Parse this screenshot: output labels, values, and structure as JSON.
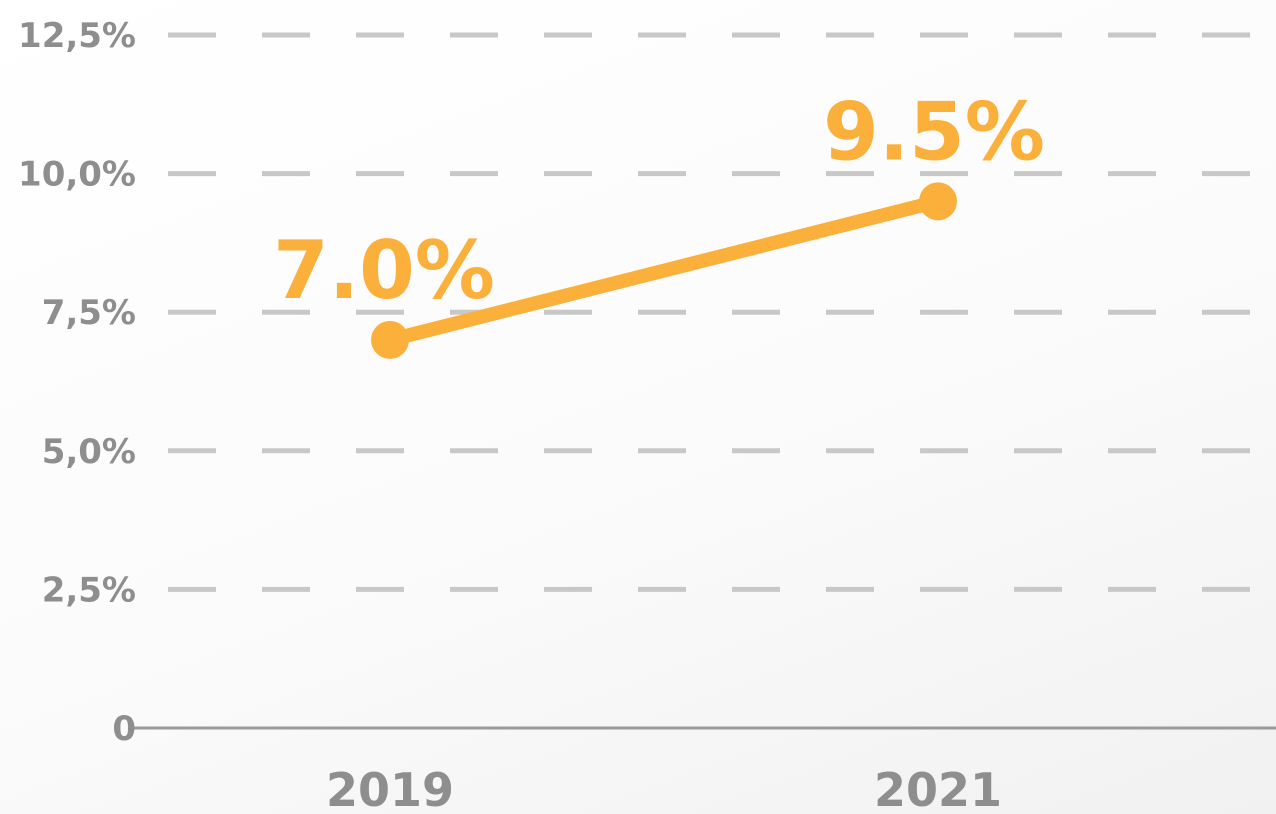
{
  "chart_data": {
    "type": "line",
    "title": "",
    "xlabel": "",
    "ylabel": "",
    "categories": [
      "2019",
      "2021"
    ],
    "series": [
      {
        "values": [
          7.0,
          9.5
        ],
        "data_labels": [
          "7.0%",
          "9.5%"
        ]
      }
    ],
    "ylim": [
      0,
      12.5
    ],
    "yticks": [
      0,
      2.5,
      5.0,
      7.5,
      10.0,
      12.5
    ],
    "ytick_labels": [
      "0",
      "2,5%",
      "5,0%",
      "7,5%",
      "10,0%",
      "12,5%"
    ],
    "grid": true,
    "grid_style": "dashed",
    "legend": false,
    "colors": {
      "series": "#fbb03b",
      "grid": "#c8c8c8",
      "axis": "#9a9a9a",
      "tick_text": "#8e8e8e"
    }
  }
}
